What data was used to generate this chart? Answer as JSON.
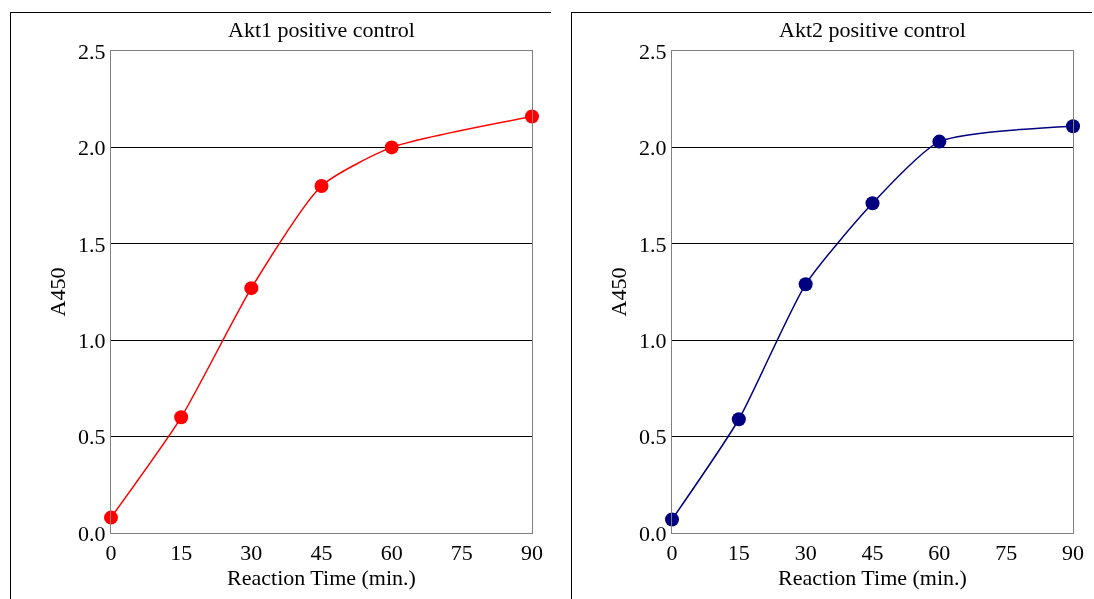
{
  "chart_data": [
    {
      "type": "line",
      "title": "Akt1 positive control",
      "xlabel": "Reaction Time (min.)",
      "ylabel": "A450",
      "x": [
        0,
        15,
        30,
        45,
        60,
        90
      ],
      "series": [
        {
          "color": "#ff0000",
          "values": [
            0.08,
            0.6,
            1.27,
            1.8,
            2.0,
            2.16
          ]
        }
      ],
      "xlim": [
        0,
        90
      ],
      "xticks": [
        0,
        15,
        30,
        45,
        60,
        75,
        90
      ],
      "ylim": [
        0,
        2.5
      ],
      "yticks": [
        {
          "value": 0,
          "label": "0.0"
        },
        {
          "value": 0.5,
          "label": "0.5"
        },
        {
          "value": 1,
          "label": "1.0"
        },
        {
          "value": 1.5,
          "label": "1.5"
        },
        {
          "value": 2,
          "label": "2.0"
        },
        {
          "value": 2.5,
          "label": "2.5"
        }
      ],
      "grid": "y",
      "marker": "circle",
      "line_style": "solid"
    },
    {
      "type": "line",
      "title": "Akt2 positive control",
      "xlabel": "Reaction Time (min.)",
      "ylabel": "A450",
      "x": [
        0,
        15,
        30,
        45,
        60,
        90
      ],
      "series": [
        {
          "color": "#000080",
          "values": [
            0.07,
            0.59,
            1.29,
            1.71,
            2.03,
            2.11
          ]
        }
      ],
      "xlim": [
        0,
        90
      ],
      "xticks": [
        0,
        15,
        30,
        45,
        60,
        75,
        90
      ],
      "ylim": [
        0,
        2.5
      ],
      "yticks": [
        {
          "value": 0,
          "label": "0.0"
        },
        {
          "value": 0.5,
          "label": "0.5"
        },
        {
          "value": 1,
          "label": "1.0"
        },
        {
          "value": 1.5,
          "label": "1.5"
        },
        {
          "value": 2,
          "label": "2.0"
        },
        {
          "value": 2.5,
          "label": "2.5"
        }
      ],
      "grid": "y",
      "marker": "circle",
      "line_style": "solid"
    }
  ]
}
